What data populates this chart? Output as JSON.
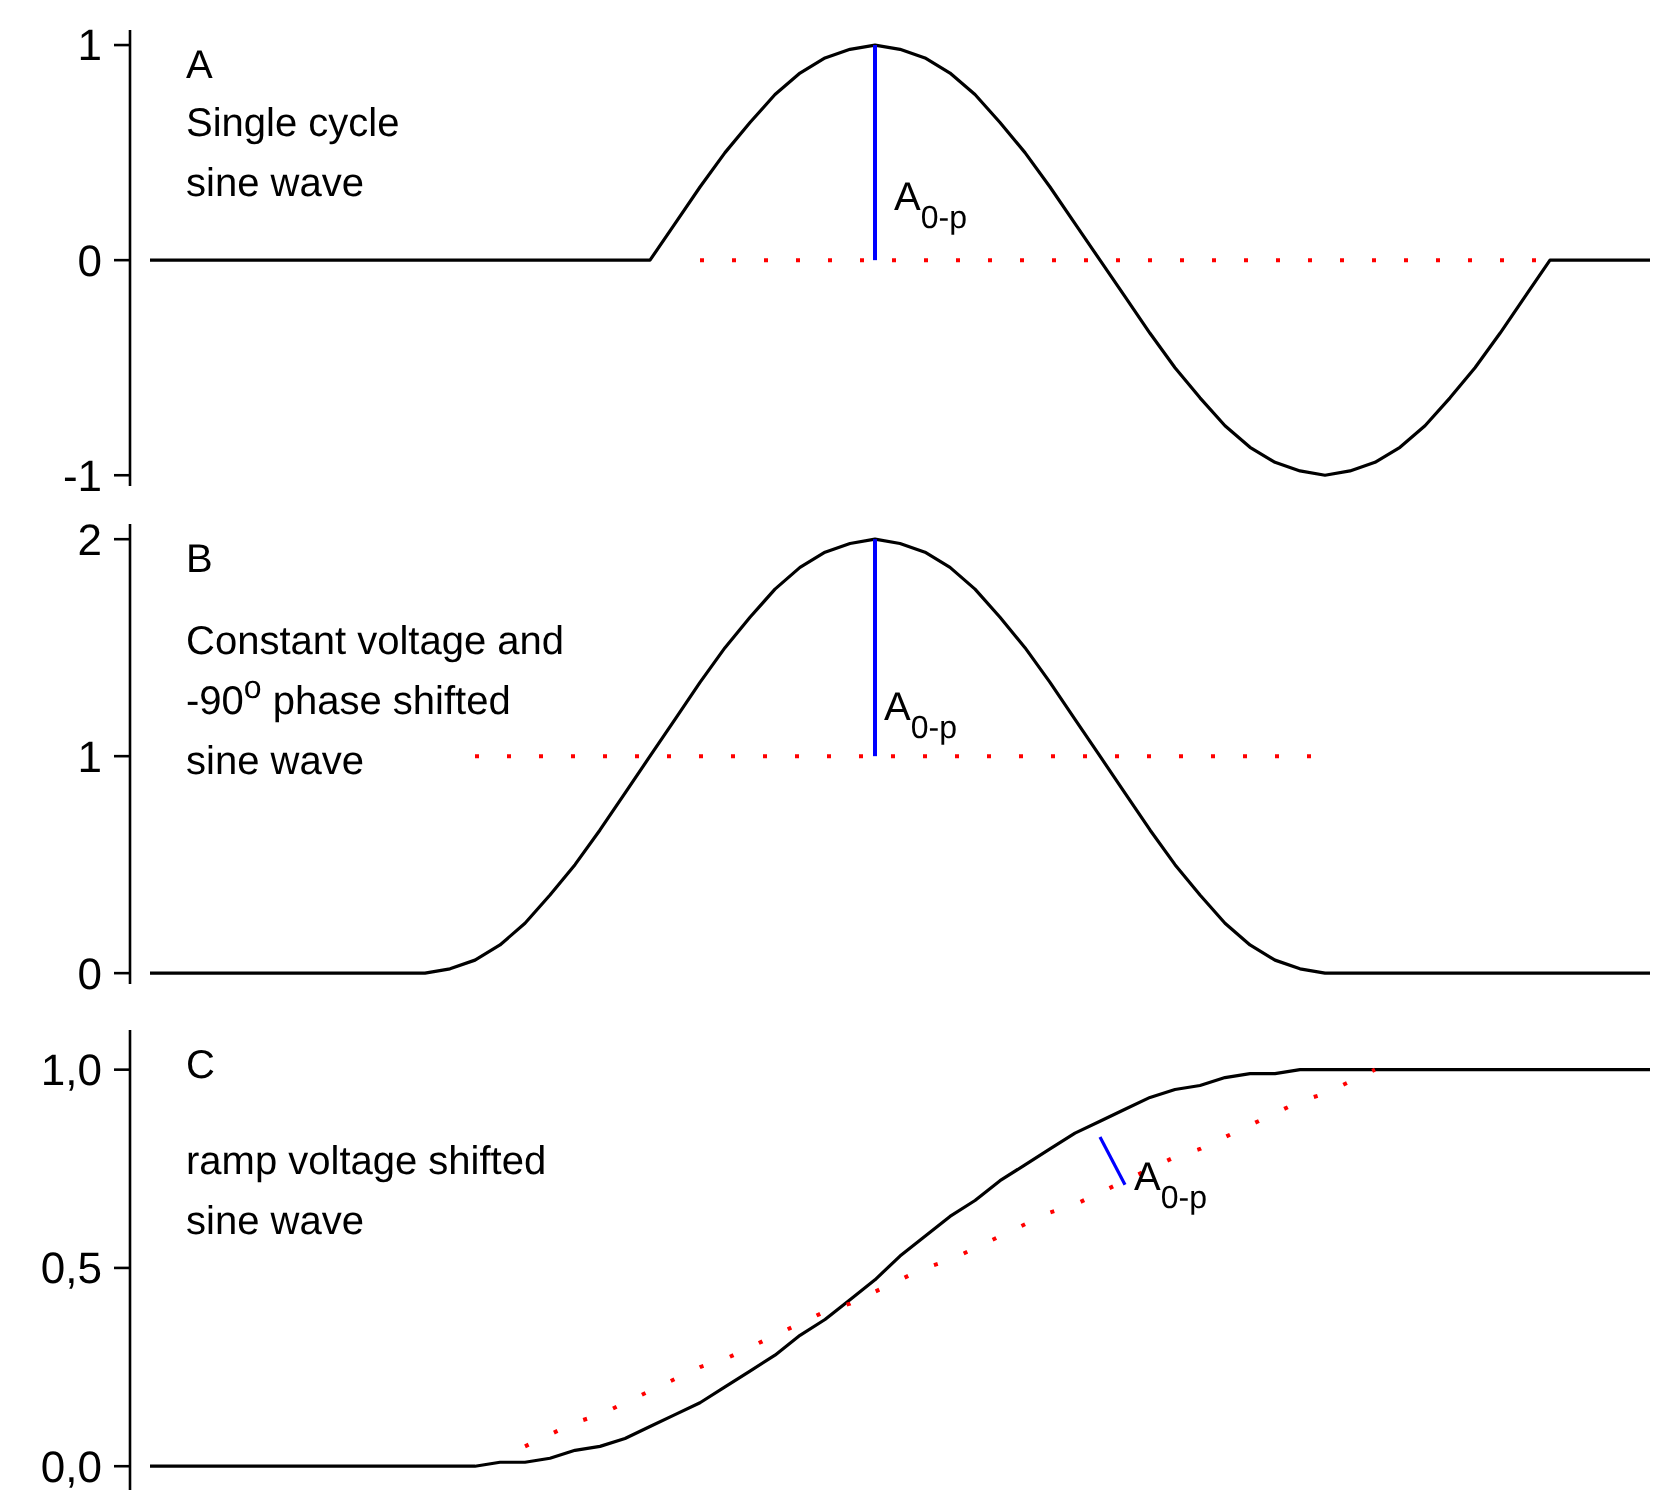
{
  "chart_data": [
    {
      "type": "line",
      "title": "A",
      "annotations": [
        "Single cycle\nsine wave",
        "A$_{0-p}$"
      ],
      "categories": [
        null,
        null,
        null,
        null,
        null,
        null,
        null,
        null,
        null,
        null,
        null,
        null,
        null,
        null,
        null,
        null,
        null,
        null,
        null,
        null,
        null,
        null,
        null,
        null,
        null,
        null,
        null,
        null,
        null,
        null,
        null,
        null,
        null,
        null,
        null,
        null,
        null,
        null,
        null,
        null,
        null,
        null,
        null,
        null,
        null,
        null,
        null,
        null,
        null,
        null,
        null,
        null,
        null,
        null,
        null,
        null,
        null,
        null,
        null,
        null,
        null
      ],
      "ylim": [
        -1.05,
        1.07
      ],
      "yticks": [
        -1,
        0,
        1
      ],
      "series": [
        {
          "color": "#000000",
          "line_style": "solid",
          "values": [
            0,
            0,
            0,
            0,
            0,
            0,
            0,
            0,
            0,
            0,
            0,
            0,
            0,
            0,
            0,
            0,
            0,
            0,
            0,
            0,
            0,
            0.17,
            0.34,
            0.5,
            0.64,
            0.77,
            0.87,
            0.94,
            0.98,
            1,
            0.98,
            0.94,
            0.87,
            0.77,
            0.64,
            0.5,
            0.34,
            0.17,
            0,
            -0.17,
            -0.34,
            -0.5,
            -0.64,
            -0.77,
            -0.87,
            -0.94,
            -0.98,
            -1,
            -0.98,
            -0.94,
            -0.87,
            -0.77,
            -0.64,
            -0.5,
            -0.34,
            -0.17,
            0,
            0,
            0,
            0,
            0
          ]
        },
        {
          "color": "#ff0000",
          "line_style": "dotted",
          "values": [
            null,
            null,
            null,
            null,
            null,
            null,
            null,
            null,
            null,
            null,
            null,
            null,
            null,
            null,
            null,
            null,
            null,
            null,
            null,
            null,
            null,
            null,
            0,
            0,
            0,
            0,
            0,
            0,
            0,
            0,
            0,
            0,
            0,
            0,
            0,
            0,
            0,
            0,
            0,
            0,
            0,
            0,
            0,
            0,
            0,
            0,
            0,
            0,
            0,
            0,
            0,
            0,
            0,
            0,
            0,
            0,
            0,
            null,
            null,
            null,
            null
          ]
        },
        {
          "type": "bar",
          "color": "#0000ff",
          "values": [
            null,
            null,
            null,
            null,
            null,
            null,
            null,
            null,
            null,
            null,
            null,
            null,
            null,
            null,
            null,
            null,
            null,
            null,
            null,
            null,
            null,
            null,
            null,
            null,
            null,
            null,
            null,
            null,
            null,
            1,
            null,
            null,
            null,
            null,
            null,
            null,
            null,
            null,
            null,
            null,
            null,
            null,
            null,
            null,
            null,
            null,
            null,
            null,
            null,
            null,
            null,
            null,
            null,
            null,
            null,
            null,
            null,
            null,
            null,
            null,
            null
          ]
        }
      ]
    },
    {
      "type": "line",
      "title": "B",
      "annotations": [
        "Constant voltage and\n-90$^{o}$ phase shifted\nsine wave",
        "A$_{0-p}$"
      ],
      "categories": [
        null,
        null,
        null,
        null,
        null,
        null,
        null,
        null,
        null,
        null,
        null,
        null,
        null,
        null,
        null,
        null,
        null,
        null,
        null,
        null,
        null,
        null,
        null,
        null,
        null,
        null,
        null,
        null,
        null,
        null,
        null,
        null,
        null,
        null,
        null,
        null,
        null,
        null,
        null,
        null,
        null,
        null,
        null,
        null,
        null,
        null,
        null,
        null,
        null,
        null,
        null,
        null,
        null,
        null,
        null,
        null,
        null,
        null,
        null,
        null,
        null
      ],
      "ylim": [
        -0.05,
        2.07
      ],
      "yticks": [
        0,
        1,
        2
      ],
      "series": [
        {
          "color": "#000000",
          "line_style": "solid",
          "values": [
            0,
            0,
            0,
            0,
            0,
            0,
            0,
            0,
            0,
            0,
            0,
            0,
            0.02,
            0.06,
            0.13,
            0.23,
            0.36,
            0.5,
            0.66,
            0.83,
            1,
            1.17,
            1.34,
            1.5,
            1.64,
            1.77,
            1.87,
            1.94,
            1.98,
            2,
            1.98,
            1.94,
            1.87,
            1.77,
            1.64,
            1.5,
            1.34,
            1.17,
            1,
            0.83,
            0.66,
            0.5,
            0.36,
            0.23,
            0.13,
            0.06,
            0.02,
            0,
            0,
            0,
            0,
            0,
            0,
            0,
            0,
            0,
            0,
            0,
            0,
            0,
            0
          ]
        },
        {
          "color": "#ff0000",
          "line_style": "dotted",
          "values": [
            null,
            null,
            null,
            null,
            null,
            null,
            null,
            null,
            null,
            null,
            null,
            null,
            null,
            1,
            1,
            1,
            1,
            1,
            1,
            1,
            1,
            1,
            1,
            1,
            1,
            1,
            1,
            1,
            1,
            1,
            1,
            1,
            1,
            1,
            1,
            1,
            1,
            1,
            1,
            1,
            1,
            1,
            1,
            1,
            1,
            1,
            1,
            1,
            null,
            null,
            null,
            null,
            null,
            null,
            null,
            null,
            null,
            null,
            null,
            null,
            null
          ]
        },
        {
          "type": "bar",
          "color": "#0000ff",
          "base": [
            null,
            null,
            null,
            null,
            null,
            null,
            null,
            null,
            null,
            null,
            null,
            null,
            null,
            null,
            null,
            null,
            null,
            null,
            null,
            null,
            null,
            null,
            null,
            null,
            null,
            null,
            null,
            null,
            null,
            1,
            null,
            null,
            null,
            null,
            null,
            null,
            null,
            null,
            null,
            null,
            null,
            null,
            null,
            null,
            null,
            null,
            null,
            null,
            null,
            null,
            null,
            null,
            null,
            null,
            null,
            null,
            null,
            null,
            null,
            null,
            null
          ],
          "values": [
            null,
            null,
            null,
            null,
            null,
            null,
            null,
            null,
            null,
            null,
            null,
            null,
            null,
            null,
            null,
            null,
            null,
            null,
            null,
            null,
            null,
            null,
            null,
            null,
            null,
            null,
            null,
            null,
            null,
            1,
            null,
            null,
            null,
            null,
            null,
            null,
            null,
            null,
            null,
            null,
            null,
            null,
            null,
            null,
            null,
            null,
            null,
            null,
            null,
            null,
            null,
            null,
            null,
            null,
            null,
            null,
            null,
            null,
            null,
            null,
            null
          ]
        }
      ]
    },
    {
      "type": "line",
      "title": "C",
      "annotations": [
        "ramp voltage shifted\nsine wave",
        "A$_{0-p}$"
      ],
      "categories": [
        null,
        null,
        null,
        null,
        null,
        null,
        null,
        null,
        null,
        null,
        null,
        null,
        null,
        null,
        null,
        null,
        null,
        null,
        null,
        null,
        null,
        null,
        null,
        null,
        null,
        null,
        null,
        null,
        null,
        null,
        null,
        null,
        null,
        null,
        null,
        null,
        null,
        null,
        null,
        null,
        null,
        null,
        null,
        null,
        null,
        null,
        null,
        null,
        null,
        null,
        null,
        null,
        null,
        null,
        null,
        null,
        null,
        null,
        null,
        null,
        null
      ],
      "ylim": [
        -0.06,
        1.1
      ],
      "yticks": [
        {
          "value": 0,
          "label": "0,0"
        },
        {
          "value": 0.5,
          "label": "0,5"
        },
        {
          "value": 1,
          "label": "1,0"
        }
      ],
      "series": [
        {
          "color": "#000000",
          "line_style": "solid",
          "values": [
            0,
            0,
            0,
            0,
            0,
            0,
            0,
            0,
            0,
            0,
            0,
            0,
            0,
            0,
            0.01,
            0.01,
            0.02,
            0.04,
            0.05,
            0.07,
            0.1,
            0.13,
            0.16,
            0.2,
            0.24,
            0.28,
            0.33,
            0.37,
            0.42,
            0.47,
            0.53,
            0.58,
            0.63,
            0.67,
            0.72,
            0.76,
            0.8,
            0.84,
            0.87,
            0.9,
            0.93,
            0.95,
            0.96,
            0.98,
            0.99,
            0.99,
            1,
            1,
            1,
            1,
            1,
            1,
            1,
            1,
            1,
            1,
            1,
            1,
            1,
            1,
            1
          ]
        },
        {
          "color": "#ff0000",
          "line_style": "dotted",
          "values": [
            null,
            null,
            null,
            null,
            null,
            null,
            null,
            null,
            null,
            null,
            null,
            null,
            null,
            null,
            null,
            0.05,
            0.08,
            0.11,
            0.13,
            0.16,
            0.19,
            0.22,
            0.25,
            0.27,
            0.3,
            0.33,
            0.36,
            0.39,
            0.41,
            0.44,
            0.47,
            0.5,
            0.52,
            0.55,
            0.58,
            0.61,
            0.64,
            0.66,
            0.69,
            0.72,
            0.75,
            0.78,
            0.8,
            0.83,
            0.86,
            0.89,
            0.92,
            0.94,
            0.97,
            1,
            null,
            null,
            null,
            null,
            null,
            null,
            null,
            null,
            null,
            null,
            null
          ]
        },
        {
          "color": "#0000ff",
          "line_style": "solid",
          "values": [
            null,
            null,
            null,
            null,
            null,
            null,
            null,
            null,
            null,
            null,
            null,
            null,
            null,
            null,
            null,
            null,
            null,
            null,
            null,
            null,
            null,
            null,
            null,
            null,
            null,
            null,
            null,
            null,
            null,
            null,
            null,
            null,
            null,
            null,
            null,
            null,
            null,
            null,
            0.83,
            0.71,
            null,
            null,
            null,
            null,
            null,
            null,
            null,
            null,
            null,
            null,
            null,
            null,
            null,
            null,
            null,
            null,
            null,
            null,
            null,
            null,
            null
          ]
        }
      ]
    }
  ]
}
